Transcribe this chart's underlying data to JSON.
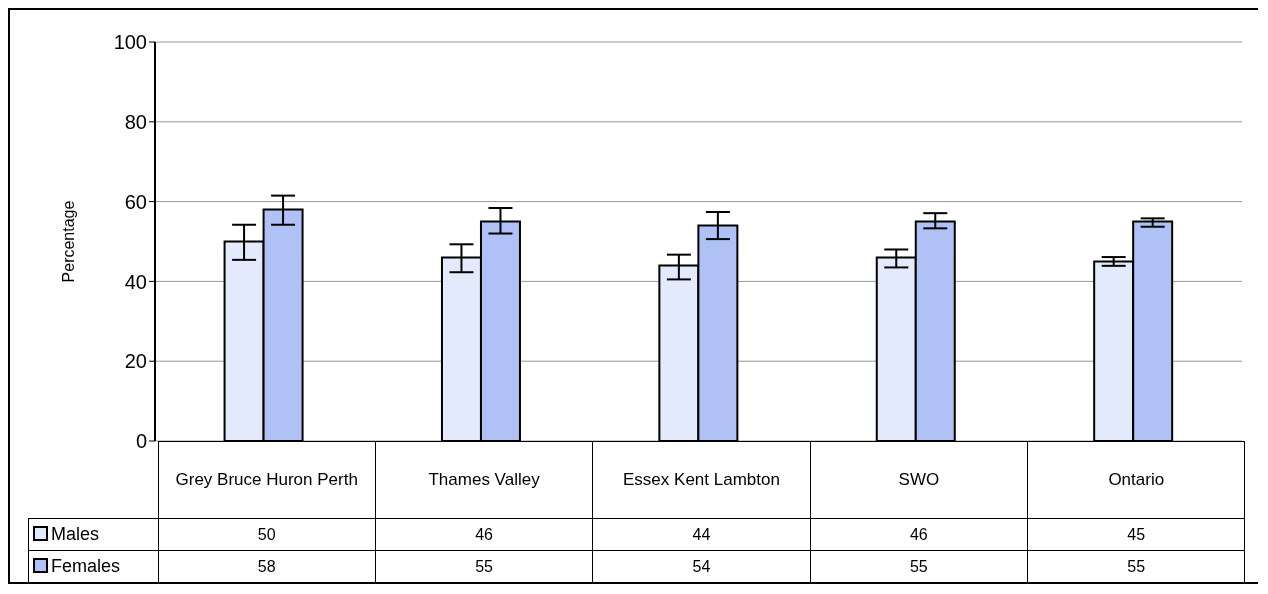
{
  "chart_data": {
    "type": "bar",
    "ylabel": "Percentage",
    "categories": [
      "Grey Bruce Huron Perth",
      "Thames Valley",
      "Essex Kent Lambton",
      "SWO",
      "Ontario"
    ],
    "series": [
      {
        "name": "Males",
        "color": "#e2eafc",
        "values": [
          50,
          46,
          44,
          46,
          45
        ],
        "errors": [
          [
            45.4,
            54.2
          ],
          [
            42.3,
            49.3
          ],
          [
            40.5,
            46.7
          ],
          [
            43.5,
            48
          ],
          [
            43.9,
            46.1
          ]
        ]
      },
      {
        "name": "Females",
        "color": "#b0c2f5",
        "values": [
          58,
          55,
          54,
          55,
          55
        ],
        "errors": [
          [
            54.2,
            61.5
          ],
          [
            52,
            58.4
          ],
          [
            50.6,
            57.4
          ],
          [
            53.3,
            57.1
          ],
          [
            53.7,
            55.8
          ]
        ]
      }
    ],
    "ylim": [
      0,
      100
    ],
    "yticks": [
      0,
      20,
      40,
      60,
      80,
      100
    ],
    "grid": "y",
    "legend": "bottom",
    "data_labels": true
  }
}
